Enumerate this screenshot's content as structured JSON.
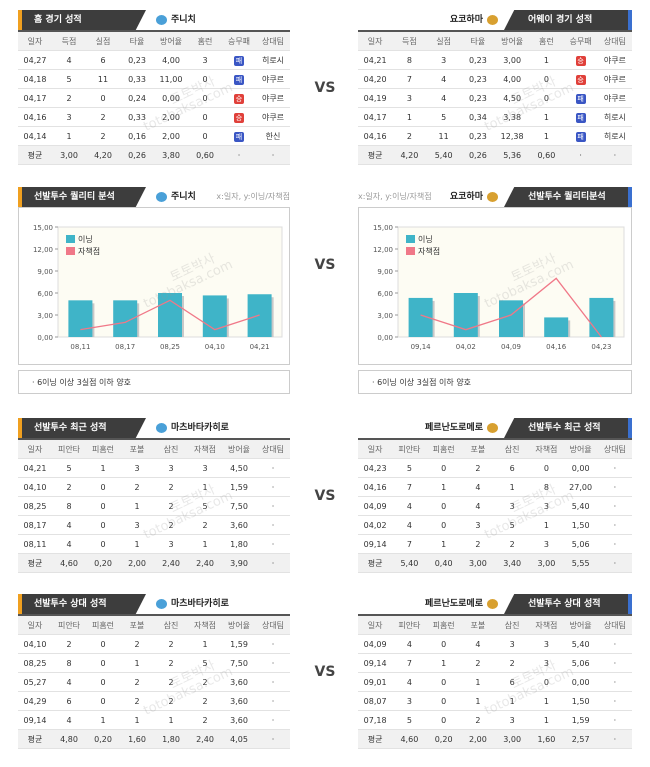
{
  "watermark": {
    "ko": "토토박사",
    "en": "totobaksa.com"
  },
  "vs": "VS",
  "result_colors": {
    "승": "#e0403a",
    "패": "#3a56c4"
  },
  "sections": [
    {
      "left": {
        "title": "홈 경기 성적",
        "team": "주니치",
        "table": {
          "header": [
            "일자",
            "득점",
            "실점",
            "타율",
            "방어율",
            "홈런",
            "승무패",
            "상대팀"
          ],
          "rows": [
            [
              "04,27",
              "4",
              "6",
              "0,23",
              "4,00",
              "3",
              "패",
              "히로시"
            ],
            [
              "04,18",
              "5",
              "11",
              "0,33",
              "11,00",
              "0",
              "패",
              "야쿠르"
            ],
            [
              "04,17",
              "2",
              "0",
              "0,24",
              "0,00",
              "0",
              "승",
              "야쿠르"
            ],
            [
              "04,16",
              "3",
              "2",
              "0,33",
              "2,00",
              "0",
              "승",
              "야쿠르"
            ],
            [
              "04,14",
              "1",
              "2",
              "0,16",
              "2,00",
              "0",
              "패",
              "한신"
            ],
            [
              "평균",
              "3,00",
              "4,20",
              "0,26",
              "3,80",
              "0,60",
              "·",
              "·"
            ]
          ]
        }
      },
      "right": {
        "title": "어웨이 경기 성적",
        "team": "요코하마",
        "table": {
          "header": [
            "일자",
            "득점",
            "실점",
            "타율",
            "방어율",
            "홈런",
            "승무패",
            "상대팀"
          ],
          "rows": [
            [
              "04,21",
              "8",
              "3",
              "0,23",
              "3,00",
              "1",
              "승",
              "야쿠르"
            ],
            [
              "04,20",
              "7",
              "4",
              "0,23",
              "4,00",
              "0",
              "승",
              "야쿠르"
            ],
            [
              "04,19",
              "3",
              "4",
              "0,23",
              "4,50",
              "0",
              "패",
              "야쿠르"
            ],
            [
              "04,17",
              "1",
              "5",
              "0,34",
              "3,38",
              "1",
              "패",
              "히로시"
            ],
            [
              "04,16",
              "2",
              "11",
              "0,23",
              "12,38",
              "1",
              "패",
              "히로시"
            ],
            [
              "평균",
              "4,20",
              "5,40",
              "0,26",
              "5,36",
              "0,60",
              "·",
              "·"
            ]
          ]
        }
      }
    },
    {
      "left": {
        "title": "선발투수 퀄리티 분석",
        "team": "주니치",
        "axis_note": "x:일자, y:이닝/자책점",
        "note": "· 6이닝 이상 3실점 이하 양호",
        "chart": {
          "type": "bar",
          "categories": [
            "08,11",
            "08,17",
            "08,25",
            "04,10",
            "04,21"
          ],
          "ylim": [
            0,
            15
          ],
          "yticks": [
            {
              "value": 0,
              "label": "0,00"
            },
            {
              "value": 3,
              "label": "3,00"
            },
            {
              "value": 6,
              "label": "6,00"
            },
            {
              "value": 9,
              "label": "9,00"
            },
            {
              "value": 12,
              "label": "12,00"
            },
            {
              "value": 15,
              "label": "15,00"
            }
          ],
          "series": [
            {
              "name": "이닝",
              "type": "bar",
              "color": "#3fb4c8",
              "values": [
                5,
                5,
                6,
                5.67,
                5.83
              ]
            },
            {
              "name": "자책점",
              "type": "line",
              "color": "#f07888",
              "values": [
                1,
                2,
                5,
                1,
                3
              ]
            }
          ]
        }
      },
      "right": {
        "title": "선발투수 퀄리티분석",
        "team": "요코하마",
        "axis_note": "x:일자, y:이닝/자책점",
        "note": "· 6이닝 이상 3실점 이하 양호",
        "chart": {
          "type": "bar",
          "categories": [
            "09,14",
            "04,02",
            "04,09",
            "04,16",
            "04,23"
          ],
          "ylim": [
            0,
            15
          ],
          "yticks": [
            {
              "value": 0,
              "label": "0,00"
            },
            {
              "value": 3,
              "label": "3,00"
            },
            {
              "value": 6,
              "label": "6,00"
            },
            {
              "value": 9,
              "label": "9,00"
            },
            {
              "value": 12,
              "label": "12,00"
            },
            {
              "value": 15,
              "label": "15,00"
            }
          ],
          "series": [
            {
              "name": "이닝",
              "type": "bar",
              "color": "#3fb4c8",
              "values": [
                5.33,
                6,
                5,
                2.67,
                5.33
              ]
            },
            {
              "name": "자책점",
              "type": "line",
              "color": "#f07888",
              "values": [
                3,
                1,
                3,
                8,
                0
              ]
            }
          ]
        }
      }
    },
    {
      "left": {
        "title": "선발투수 최근 성적",
        "team": "마츠바타카히로",
        "table": {
          "header": [
            "일자",
            "피안타",
            "피홈런",
            "포볼",
            "삼진",
            "자책점",
            "방어율",
            "상대팀"
          ],
          "rows": [
            [
              "04,21",
              "5",
              "1",
              "3",
              "3",
              "3",
              "4,50",
              "·"
            ],
            [
              "04,10",
              "2",
              "0",
              "2",
              "2",
              "1",
              "1,59",
              "·"
            ],
            [
              "08,25",
              "8",
              "0",
              "1",
              "2",
              "5",
              "7,50",
              "·"
            ],
            [
              "08,17",
              "4",
              "0",
              "3",
              "2",
              "2",
              "3,60",
              "·"
            ],
            [
              "08,11",
              "4",
              "0",
              "1",
              "3",
              "1",
              "1,80",
              "·"
            ],
            [
              "평균",
              "4,60",
              "0,20",
              "2,00",
              "2,40",
              "2,40",
              "3,90",
              "·"
            ]
          ]
        }
      },
      "right": {
        "title": "선발투수 최근 성적",
        "team": "페르난도로메로",
        "table": {
          "header": [
            "일자",
            "피안타",
            "피홈런",
            "포볼",
            "삼진",
            "자책점",
            "방어율",
            "상대팀"
          ],
          "rows": [
            [
              "04,23",
              "5",
              "0",
              "2",
              "6",
              "0",
              "0,00",
              "·"
            ],
            [
              "04,16",
              "7",
              "1",
              "4",
              "1",
              "8",
              "27,00",
              "·"
            ],
            [
              "04,09",
              "4",
              "0",
              "4",
              "3",
              "3",
              "5,40",
              "·"
            ],
            [
              "04,02",
              "4",
              "0",
              "3",
              "5",
              "1",
              "1,50",
              "·"
            ],
            [
              "09,14",
              "7",
              "1",
              "2",
              "2",
              "3",
              "5,06",
              "·"
            ],
            [
              "평균",
              "5,40",
              "0,40",
              "3,00",
              "3,40",
              "3,00",
              "5,55",
              "·"
            ]
          ]
        }
      }
    },
    {
      "left": {
        "title": "선발투수 상대 성적",
        "team": "마츠바타카히로",
        "table": {
          "header": [
            "일자",
            "피안타",
            "피홈런",
            "포볼",
            "삼진",
            "자책점",
            "방어율",
            "상대팀"
          ],
          "rows": [
            [
              "04,10",
              "2",
              "0",
              "2",
              "2",
              "1",
              "1,59",
              "·"
            ],
            [
              "08,25",
              "8",
              "0",
              "1",
              "2",
              "5",
              "7,50",
              "·"
            ],
            [
              "05,27",
              "4",
              "0",
              "2",
              "2",
              "2",
              "3,60",
              "·"
            ],
            [
              "04,29",
              "6",
              "0",
              "2",
              "2",
              "2",
              "3,60",
              "·"
            ],
            [
              "09,14",
              "4",
              "1",
              "1",
              "1",
              "2",
              "3,60",
              "·"
            ],
            [
              "평균",
              "4,80",
              "0,20",
              "1,60",
              "1,80",
              "2,40",
              "4,05",
              "·"
            ]
          ]
        }
      },
      "right": {
        "title": "선발투수 상대 성적",
        "team": "페르난도로메로",
        "table": {
          "header": [
            "일자",
            "피안타",
            "피홈런",
            "포볼",
            "삼진",
            "자책점",
            "방어율",
            "상대팀"
          ],
          "rows": [
            [
              "04,09",
              "4",
              "0",
              "4",
              "3",
              "3",
              "5,40",
              "·"
            ],
            [
              "09,14",
              "7",
              "1",
              "2",
              "2",
              "3",
              "5,06",
              "·"
            ],
            [
              "09,01",
              "4",
              "0",
              "1",
              "6",
              "0",
              "0,00",
              "·"
            ],
            [
              "08,07",
              "3",
              "0",
              "1",
              "1",
              "1",
              "1,50",
              "·"
            ],
            [
              "07,18",
              "5",
              "0",
              "2",
              "3",
              "1",
              "1,59",
              "·"
            ],
            [
              "평균",
              "4,60",
              "0,20",
              "2,00",
              "3,00",
              "1,60",
              "2,57",
              "·"
            ]
          ]
        }
      }
    }
  ]
}
